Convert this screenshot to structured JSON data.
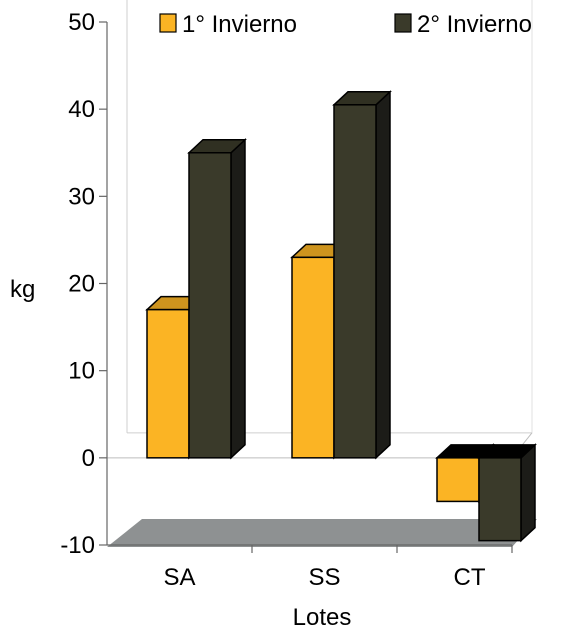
{
  "chart_data": {
    "type": "bar",
    "three_d": true,
    "categories": [
      "SA",
      "SS",
      "CT"
    ],
    "series": [
      {
        "name": "1° Invierno",
        "values": [
          17,
          23,
          -5
        ],
        "color": "#FBB424"
      },
      {
        "name": "2° Invierno",
        "values": [
          35,
          40.5,
          -9.5
        ],
        "color": "#3A3A2A"
      }
    ],
    "xlabel": "Lotes",
    "ylabel": "kg",
    "ylim": [
      -10,
      50
    ],
    "yticks": [
      -10,
      0,
      10,
      20,
      30,
      40,
      50
    ],
    "grid": false,
    "legend": "top",
    "floor_color": "#8E9192"
  }
}
